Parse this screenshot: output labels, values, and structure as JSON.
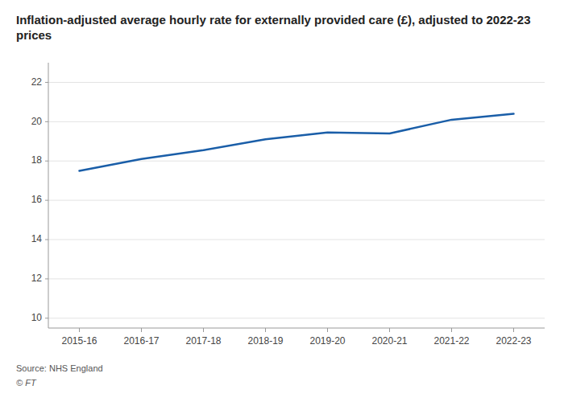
{
  "chart_data": {
    "type": "line",
    "title": "Inflation-adjusted average hourly rate for externally provided care (£), adjusted to 2022-23 prices",
    "categories": [
      "2015-16",
      "2016-17",
      "2017-18",
      "2018-19",
      "2019-20",
      "2020-21",
      "2021-22",
      "2022-23"
    ],
    "values": [
      17.5,
      18.1,
      18.55,
      19.1,
      19.45,
      19.4,
      20.1,
      20.4
    ],
    "color": "#1a5ea8",
    "ylim": [
      9.5,
      23
    ],
    "yticks": [
      10,
      12,
      14,
      16,
      18,
      20,
      22
    ],
    "grid": true,
    "annotations": [
      "Source: NHS England",
      "© FT"
    ]
  }
}
